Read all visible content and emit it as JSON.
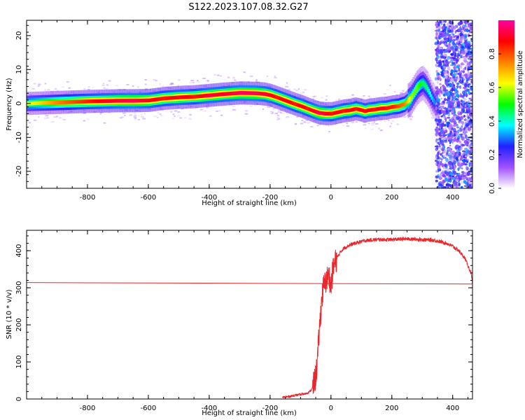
{
  "figure_title": "S122.2023.107.08.32.G27",
  "chart_data": [
    {
      "type": "heatmap",
      "xlabel": "Height of straight line (km)",
      "ylabel": "Frequency (Hz)",
      "xlim": [
        -1000,
        465
      ],
      "ylim": [
        -25,
        24.5
      ],
      "xticks": [
        -800,
        -600,
        -400,
        -200,
        0,
        200,
        400
      ],
      "yticks": [
        -20,
        -10,
        0,
        10,
        20
      ],
      "colorbar": {
        "label": "Normalized spectral amplitude",
        "range": [
          0,
          1
        ],
        "ticks": [
          "0.0",
          "0.2",
          "0.4",
          "0.6",
          "0.8"
        ],
        "colormap": [
          "#ffffff",
          "#a050ff",
          "#2020ff",
          "#00ffff",
          "#00ff00",
          "#ffff00",
          "#ff8000",
          "#ff0000",
          "#ff00a0"
        ]
      },
      "ridge": {
        "x": [
          -1000,
          -900,
          -800,
          -700,
          -650,
          -600,
          -550,
          -500,
          -450,
          -400,
          -350,
          -300,
          -250,
          -220,
          -200,
          -180,
          -150,
          -120,
          -100,
          -80,
          -60,
          -40,
          -20,
          0,
          20,
          40,
          60,
          80,
          100,
          110,
          120,
          140,
          160,
          180,
          200,
          220,
          240,
          260,
          270,
          280,
          290,
          300,
          310,
          320,
          330,
          340,
          350
        ],
        "y": [
          0,
          0.3,
          0.6,
          0.8,
          0.8,
          0.9,
          1.5,
          1.8,
          2.0,
          2.4,
          2.8,
          3.1,
          3.0,
          2.8,
          2.4,
          1.8,
          0.8,
          -0.2,
          -0.8,
          -1.5,
          -2.2,
          -2.8,
          -3.0,
          -3.0,
          -2.6,
          -2.2,
          -2.0,
          -1.6,
          -2.0,
          -2.3,
          -2.0,
          -1.8,
          -1.5,
          -1.4,
          -1.0,
          -0.8,
          -0.2,
          1.5,
          3.0,
          4.5,
          5.5,
          6.0,
          5.0,
          3.5,
          1.5,
          0,
          -2.0
        ],
        "amplitude": [
          0.6,
          0.75,
          0.85,
          0.92,
          0.95,
          0.9,
          0.85,
          0.9,
          0.85,
          0.92,
          0.9,
          0.95,
          0.95,
          0.9,
          0.9,
          0.85,
          0.9,
          0.85,
          0.9,
          0.85,
          0.9,
          0.95,
          0.9,
          0.85,
          0.9,
          0.85,
          0.9,
          0.85,
          0.9,
          0.85,
          0.9,
          0.85,
          0.9,
          0.85,
          0.85,
          0.8,
          0.75,
          0.6,
          0.55,
          0.55,
          0.5,
          0.45,
          0.45,
          0.4,
          0.35,
          0.3,
          0.25
        ]
      },
      "noise_region_x": [
        345,
        465
      ]
    },
    {
      "type": "line",
      "xlabel": "Height of straight line (km)",
      "ylabel": "SNR (10 * v/v)",
      "xlim": [
        -1000,
        465
      ],
      "ylim": [
        0,
        455
      ],
      "xticks": [
        -800,
        -600,
        -400,
        -200,
        0,
        200,
        400
      ],
      "yticks": [
        0,
        100,
        200,
        300,
        400
      ],
      "series": [
        {
          "color": "#e8282d",
          "x": [
            -160,
            -140,
            -120,
            -100,
            -80,
            -70,
            -60,
            -50,
            -45,
            -40,
            -35,
            -30,
            -25,
            -20,
            -15,
            -10,
            -5,
            0,
            5,
            10,
            20,
            30,
            40,
            60,
            80,
            100,
            120,
            150,
            200,
            250,
            300,
            340,
            380,
            400,
            420,
            440,
            460,
            465
          ],
          "y": [
            5,
            6,
            10,
            12,
            15,
            20,
            30,
            60,
            100,
            160,
            220,
            270,
            300,
            310,
            320,
            330,
            330,
            300,
            340,
            360,
            380,
            395,
            405,
            415,
            420,
            425,
            428,
            430,
            430,
            432,
            430,
            428,
            420,
            412,
            400,
            380,
            340,
            310
          ]
        },
        {
          "color": "#e8282d",
          "x": [
            -1000,
            465
          ],
          "y": [
            314,
            310
          ]
        }
      ]
    }
  ]
}
